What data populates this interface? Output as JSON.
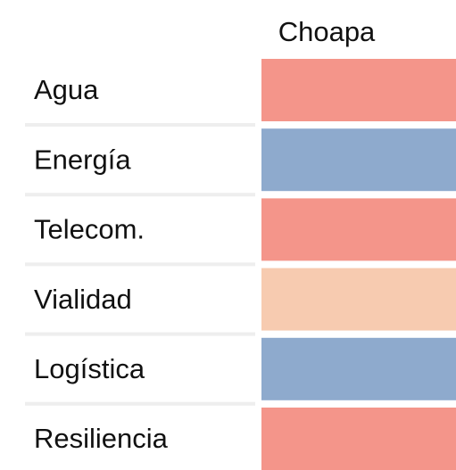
{
  "table": {
    "columns": [
      "Choapa"
    ],
    "rows": [
      {
        "label": "Agua",
        "color": "#f4958a"
      },
      {
        "label": "Energía",
        "color": "#8eaacd"
      },
      {
        "label": "Telecom.",
        "color": "#f4958a"
      },
      {
        "label": "Vialidad",
        "color": "#f7cbb0"
      },
      {
        "label": "Logística",
        "color": "#8eaacd"
      },
      {
        "label": "Resiliencia",
        "color": "#f4958a"
      }
    ]
  }
}
